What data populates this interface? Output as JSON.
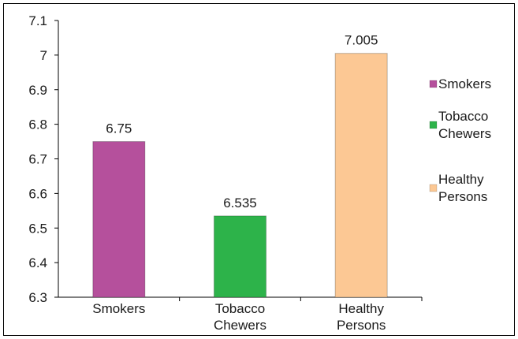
{
  "chart_data": {
    "type": "bar",
    "categories": [
      "Smokers",
      "Tobacco Chewers",
      "Healthy Persons"
    ],
    "category_label_lines": [
      [
        "Smokers"
      ],
      [
        "Tobacco",
        "Chewers"
      ],
      [
        "Healthy",
        "Persons"
      ]
    ],
    "values": [
      6.75,
      6.535,
      7.005
    ],
    "data_labels": [
      "6.75",
      "6.535",
      "7.005"
    ],
    "colors": [
      "#B5509C",
      "#2DB34A",
      "#FCC894"
    ],
    "title": "",
    "xlabel": "",
    "ylabel": "",
    "ylim": [
      6.3,
      7.1
    ],
    "yticks": [
      6.3,
      6.4,
      6.5,
      6.6,
      6.7,
      6.8,
      6.9,
      7,
      7.1
    ],
    "ytick_labels": [
      "6.3",
      "6.4",
      "6.5",
      "6.6",
      "6.7",
      "6.8",
      "6.9",
      "7",
      "7.1"
    ],
    "grid": false,
    "legend": {
      "placement": "right",
      "entries": [
        {
          "lines": [
            "Smokers"
          ],
          "color": "#B5509C"
        },
        {
          "lines": [
            "Tobacco",
            "Chewers"
          ],
          "color": "#2DB34A"
        },
        {
          "lines": [
            "Healthy",
            "Persons"
          ],
          "color": "#FCC894"
        }
      ]
    }
  }
}
